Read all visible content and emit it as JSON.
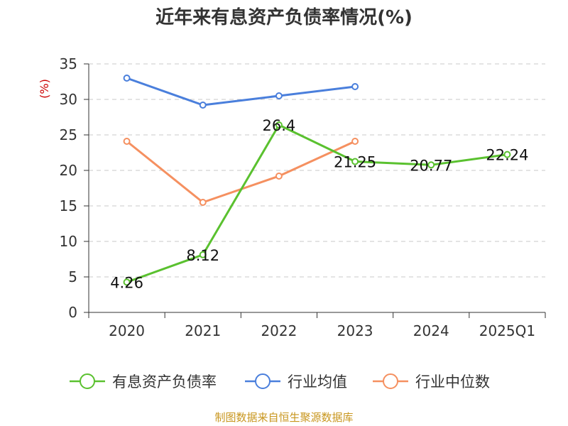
{
  "chart_data": {
    "type": "line",
    "title": "近年来有息资产负债率情况(%)",
    "ylabel": "(%)",
    "xlabel": "",
    "categories": [
      "2020",
      "2021",
      "2022",
      "2023",
      "2024",
      "2025Q1"
    ],
    "ylim": [
      0,
      35
    ],
    "yticks": [
      0,
      5,
      10,
      15,
      20,
      25,
      30,
      35
    ],
    "grid": true,
    "legend_position": "bottom",
    "series": [
      {
        "name": "有息资产负债率",
        "color": "#5ac12f",
        "values": [
          4.26,
          8.12,
          26.4,
          21.25,
          20.77,
          22.24
        ],
        "labels": [
          "4.26",
          "8.12",
          "26.4",
          "21.25",
          "20.77",
          "22.24"
        ]
      },
      {
        "name": "行业均值",
        "color": "#4a7fdc",
        "values": [
          33.0,
          29.2,
          30.5,
          31.8,
          null,
          null
        ]
      },
      {
        "name": "行业中位数",
        "color": "#f59060",
        "values": [
          24.1,
          15.5,
          19.2,
          24.1,
          null,
          null
        ]
      }
    ],
    "source": "制图数据来自恒生聚源数据库"
  }
}
